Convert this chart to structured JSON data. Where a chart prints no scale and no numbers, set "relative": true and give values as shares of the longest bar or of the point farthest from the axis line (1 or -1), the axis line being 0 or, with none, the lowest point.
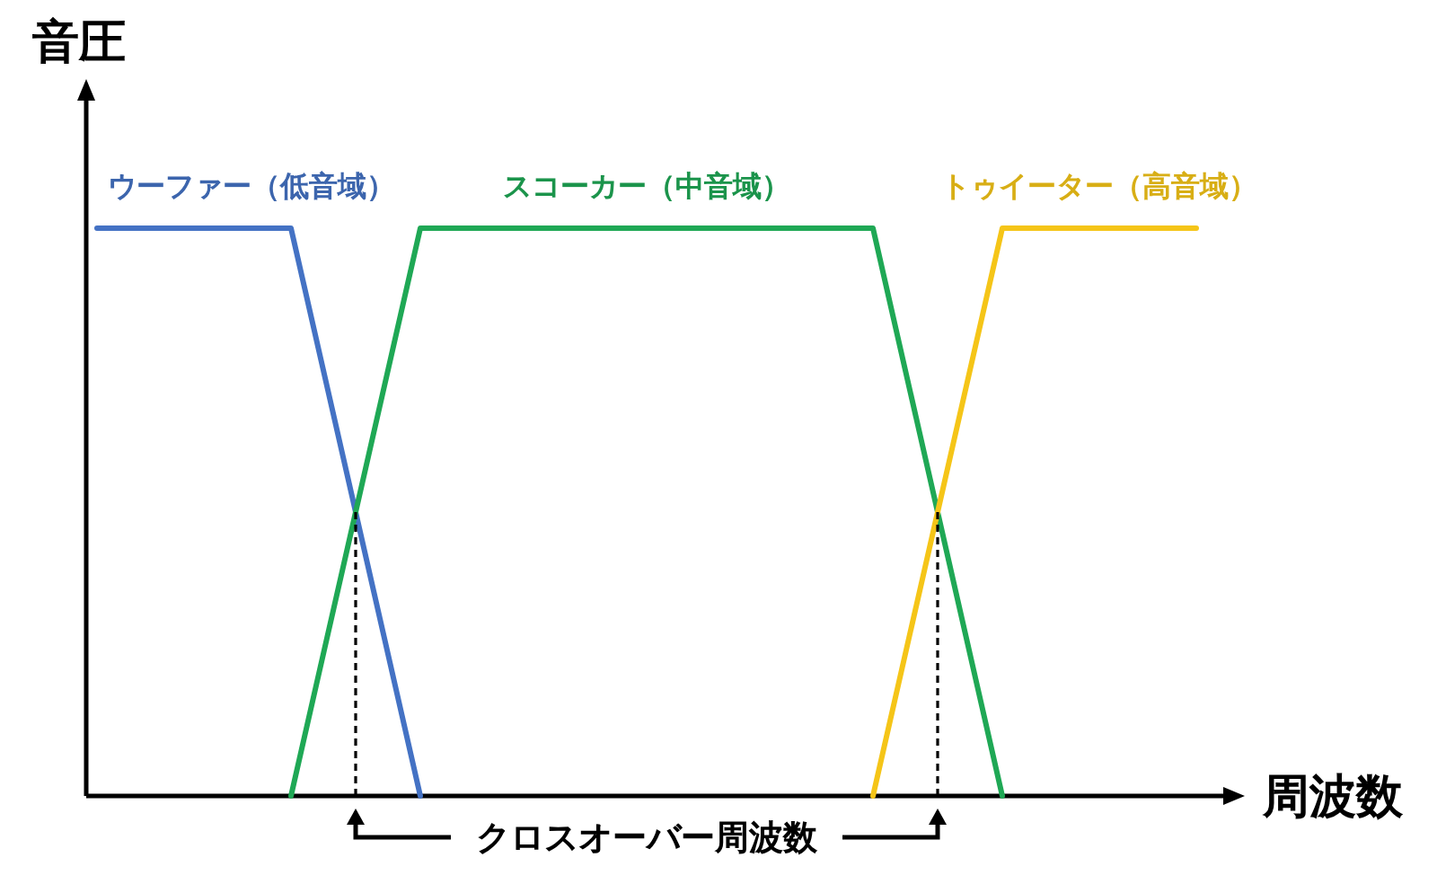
{
  "chart_data": {
    "type": "line",
    "relative": true,
    "xlabel": "周波数",
    "ylabel": "音圧",
    "categories": [
      null,
      null,
      null,
      null,
      null,
      null,
      null,
      null,
      null,
      null,
      null,
      null,
      null,
      null,
      null,
      null,
      null,
      null
    ],
    "series": [
      {
        "name": "ウーファー（低音域）",
        "color": "#4472c4",
        "values": [
          1,
          1,
          1,
          1,
          0.5,
          0,
          null,
          null,
          null,
          null,
          null,
          null,
          null,
          null,
          null,
          null,
          null,
          null
        ]
      },
      {
        "name": "スコーカー（中音域）",
        "color": "#1fa855",
        "values": [
          null,
          null,
          null,
          0,
          0.5,
          1,
          1,
          1,
          1,
          1,
          1,
          1,
          1,
          0.5,
          0,
          null,
          null,
          null
        ]
      },
      {
        "name": "トゥイーター（高音域）",
        "color": "#f5c518",
        "values": [
          null,
          null,
          null,
          null,
          null,
          null,
          null,
          null,
          null,
          null,
          null,
          null,
          0,
          0.5,
          1,
          1,
          1,
          1
        ]
      }
    ],
    "annotations": [
      "クロスオーバー周波数"
    ]
  }
}
